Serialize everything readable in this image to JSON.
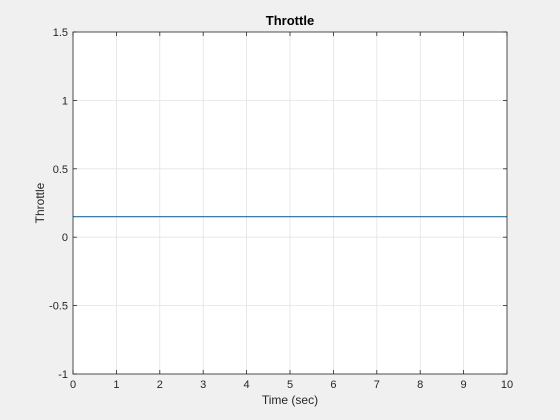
{
  "chart_data": {
    "type": "line",
    "title": "Throttle",
    "xlabel": "Time (sec)",
    "ylabel": "Throttle",
    "xlim": [
      0,
      10
    ],
    "ylim": [
      -1,
      1.5
    ],
    "xticks": [
      0,
      1,
      2,
      3,
      4,
      5,
      6,
      7,
      8,
      9,
      10
    ],
    "xtick_labels": [
      "0",
      "1",
      "2",
      "3",
      "4",
      "5",
      "6",
      "7",
      "8",
      "9",
      "10"
    ],
    "yticks": [
      -1,
      -0.5,
      0,
      0.5,
      1,
      1.5
    ],
    "ytick_labels": [
      "-1",
      "-0.5",
      "0",
      "0.5",
      "1",
      "1.5"
    ],
    "grid": true,
    "series": [
      {
        "color": "#0072bd",
        "x": [
          0,
          10
        ],
        "y": [
          0.15,
          0.15
        ]
      }
    ]
  }
}
